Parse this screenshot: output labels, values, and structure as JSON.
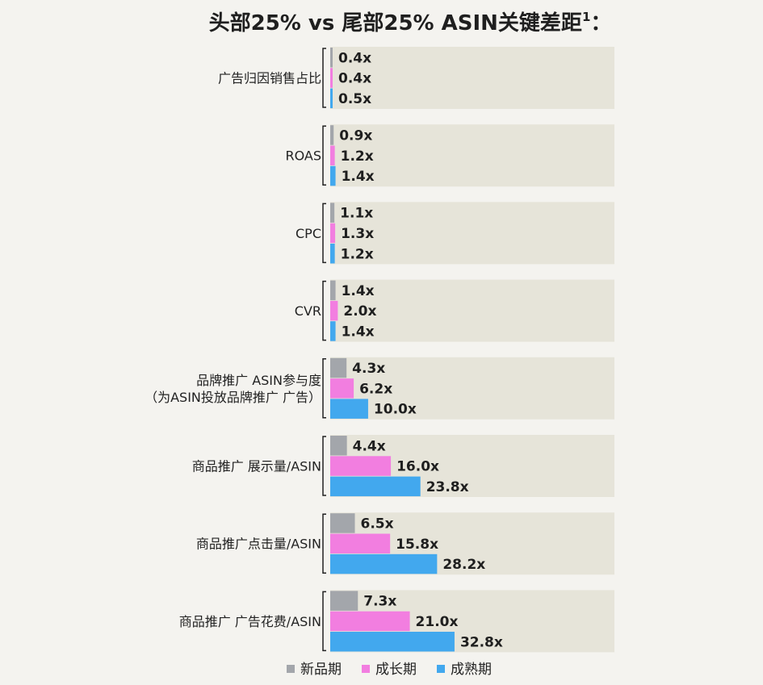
{
  "chart_data": {
    "type": "bar",
    "orientation": "horizontal",
    "title": "头部25% vs 尾部25% ASIN关键差距",
    "title_superscript": "1",
    "title_suffix": "：",
    "categories": [
      [
        "广告归因销售占比"
      ],
      [
        "ROAS"
      ],
      [
        "CPC"
      ],
      [
        "CVR"
      ],
      [
        "品牌推广 ASIN参与度",
        "（为ASIN投放品牌推广 广告）"
      ],
      [
        "商品推广 展示量/ASIN"
      ],
      [
        "商品推广点击量/ASIN"
      ],
      [
        "商品推广 广告花费/ASIN"
      ]
    ],
    "series": [
      {
        "name": "新品期",
        "color": "#a3a6ab",
        "values": [
          0.4,
          0.9,
          1.1,
          1.4,
          4.3,
          4.4,
          6.5,
          7.3
        ]
      },
      {
        "name": "成长期",
        "color": "#f27ee0",
        "values": [
          0.4,
          1.2,
          1.3,
          2.0,
          6.2,
          16.0,
          15.8,
          21.0
        ]
      },
      {
        "name": "成熟期",
        "color": "#42a8ee",
        "values": [
          0.5,
          1.4,
          1.2,
          1.4,
          10.0,
          23.8,
          28.2,
          32.8
        ]
      }
    ],
    "value_suffix": "x",
    "xlim": [
      0,
      75
    ],
    "panel_color": "#e6e4d9",
    "grid": false,
    "legend_position": "bottom"
  }
}
